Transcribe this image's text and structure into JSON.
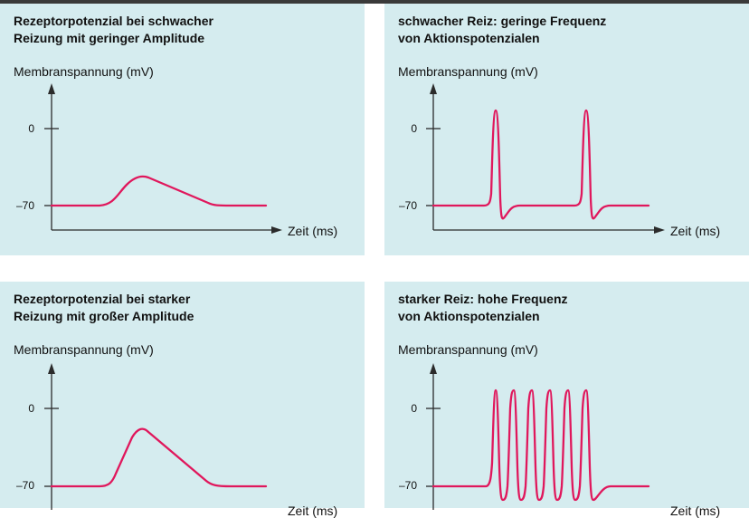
{
  "figure": {
    "panels": [
      {
        "title_line1": "Rezeptorpotenzial bei schwacher",
        "title_line2": "Reizung mit geringer Amplitude",
        "ylabel": "Membranspannung (mV)",
        "xlabel": "Zeit (ms)",
        "tick_top": "0",
        "tick_bottom": "–70"
      },
      {
        "title_line1": "schwacher Reiz: geringe Frequenz",
        "title_line2": "von Aktionspotenzialen",
        "ylabel": "Membranspannung (mV)",
        "xlabel": "Zeit (ms)",
        "tick_top": "0",
        "tick_bottom": "–70"
      },
      {
        "title_line1": "Rezeptorpotenzial bei starker",
        "title_line2": "Reizung mit großer Amplitude",
        "ylabel": "Membranspannung (mV)",
        "xlabel": "Zeit (ms)",
        "tick_top": "0",
        "tick_bottom": "–70"
      },
      {
        "title_line1": "starker Reiz: hohe Frequenz",
        "title_line2": "von Aktionspotenzialen",
        "ylabel": "Membranspannung (mV)",
        "xlabel": "Zeit (ms)",
        "tick_top": "0",
        "tick_bottom": "–70"
      }
    ]
  },
  "colors": {
    "panel_bg": "#d5ecef",
    "curve": "#e0175c",
    "axis": "#2b2b2b"
  }
}
